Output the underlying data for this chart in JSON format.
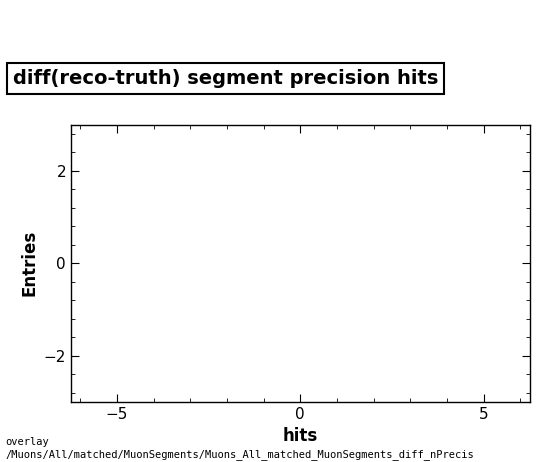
{
  "title": "diff(reco-truth) segment precision hits",
  "xlabel": "hits",
  "ylabel": "Entries",
  "xlim": [
    -6.25,
    6.25
  ],
  "ylim": [
    -3.0,
    3.0
  ],
  "xticks": [
    -5,
    0,
    5
  ],
  "yticks": [
    -2,
    0,
    2
  ],
  "footer_line1": "overlay",
  "footer_line2": "/Muons/All/matched/MuonSegments/Muons_All_matched_MuonSegments_diff_nPrecis",
  "background_color": "#ffffff",
  "title_fontsize": 14,
  "axis_label_fontsize": 12,
  "tick_fontsize": 11,
  "footer_fontsize": 7.5
}
